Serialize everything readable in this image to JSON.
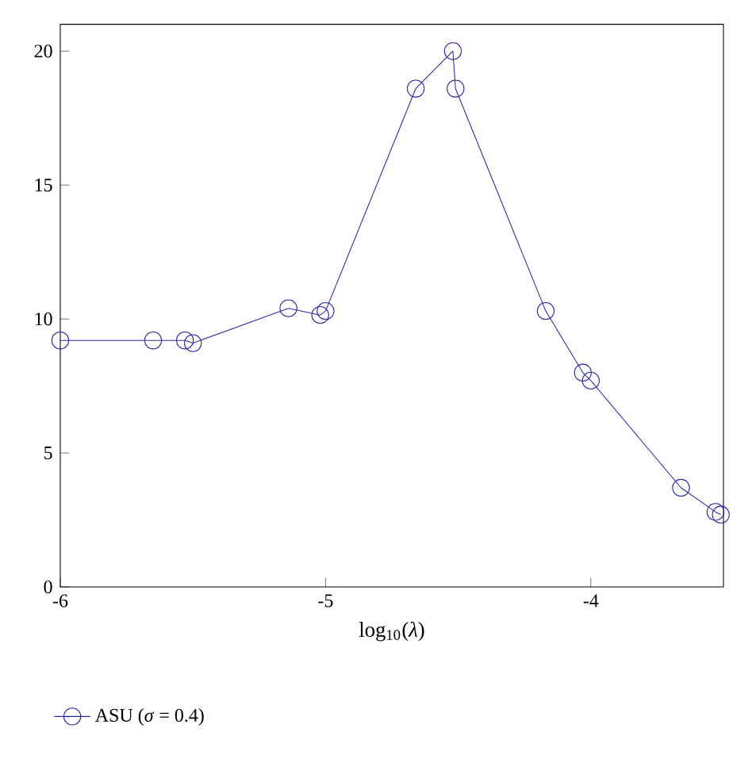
{
  "chart_data": {
    "type": "line",
    "xlabel": "log$_{10}$(*λ*)",
    "x": [
      -6,
      -5.65,
      -5.53,
      -5.5,
      -5.14,
      -5.02,
      -5.0,
      -4.66,
      -4.52,
      -4.51,
      -4.17,
      -4.03,
      -4.0,
      -3.66,
      -3.53,
      -3.51
    ],
    "series": [
      {
        "name": "ASU (*σ* = 0.4)",
        "color": "#2a2aa8",
        "values": [
          9.2,
          9.2,
          9.2,
          9.1,
          10.4,
          10.15,
          10.3,
          18.6,
          20.0,
          18.6,
          10.3,
          8.0,
          7.7,
          3.7,
          2.8,
          2.7
        ]
      }
    ],
    "xlim": [
      -6,
      -3.5
    ],
    "ylim": [
      0,
      21
    ],
    "xticks": [
      -6,
      -5,
      -4
    ],
    "yticks": [
      0,
      5,
      10,
      15,
      20
    ],
    "marker": "circle",
    "line_style": "solid",
    "legend": "bottom left",
    "grid": false
  }
}
